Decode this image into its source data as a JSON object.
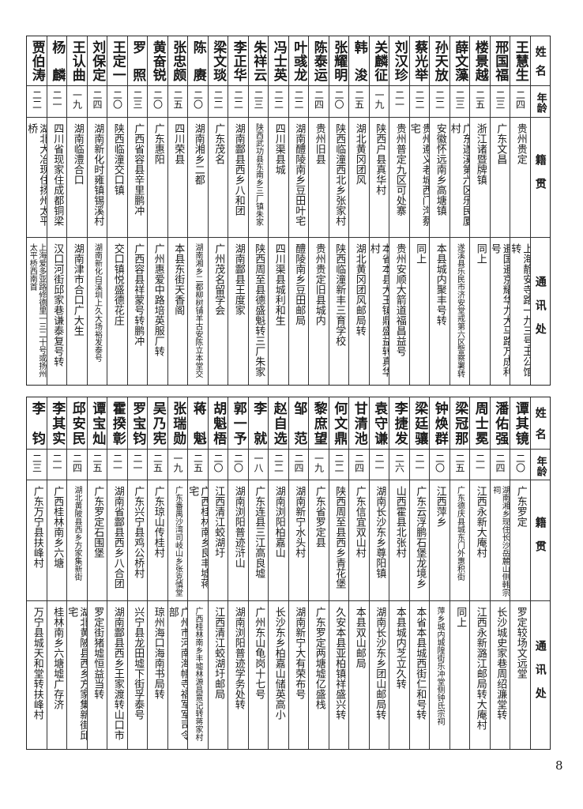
{
  "header": {
    "name": "姓名",
    "age": "年龄",
    "origin": "籍贯",
    "address": "通讯处"
  },
  "tables": [
    {
      "rows": [
        {
          "name": "王慧生",
          "age": "二四",
          "origin": "贵州贵定",
          "address": "上海静安寺路一九三号王公馆转"
        },
        {
          "name": "邢国福",
          "age": "二三",
          "origin": "广东文昌",
          "address": "暹国暹京耀华力大马路万成利号"
        },
        {
          "name": "楼景越",
          "age": "二五",
          "origin": "浙江诸暨牌镇",
          "address": "同上"
        },
        {
          "name": "薛文藻",
          "age": "二三",
          "origin": "广东遂溪第六区乐民厦村",
          "address": "遂溪县乐民市济安堂戒第六区警察署转"
        },
        {
          "name": "孙天放",
          "age": "二二",
          "origin": "安徽怀远南乡高塘镇",
          "address": "本县城内聚丰号转"
        },
        {
          "name": "蔡光举",
          "age": "二二",
          "origin": "贵州遵义老城西门沟蔡宅",
          "address": "同上"
        },
        {
          "name": "刘汉珍",
          "age": "二一",
          "origin": "贵州普定九区可处寨",
          "address": "贵州安顺大箭道福昌益号"
        },
        {
          "name": "关麟征",
          "age": "一九",
          "origin": "陕西户县真华村",
          "address": "本省本县大王镇鼎盛益转真华村"
        },
        {
          "name": "韩浚",
          "age": "二五",
          "origin": "湖北黄冈团风",
          "address": "湖北黄冈团风邮局转"
        },
        {
          "name": "张耀明",
          "age": "二〇",
          "origin": "陕西临潼西北乡张家村",
          "address": "陕西临潼新丰三育学校"
        },
        {
          "name": "陈泰运",
          "age": "二四",
          "origin": "贵州旧县",
          "address": "贵州贵定旧县城内"
        },
        {
          "name": "叶彧龙",
          "age": "二二",
          "origin": "湖南醴陵南乡豆田叶宅",
          "address": "醴陵南乡豆田邮局"
        },
        {
          "name": "冯士英",
          "age": "二二",
          "origin": "四川渠县城",
          "address": "四川渠县城利和生"
        },
        {
          "name": "朱祥云",
          "age": "二三",
          "origin": "陕西武功县东南乡三厂镇朱家",
          "address": "陕西周至县德盛魁转三厂朱家"
        },
        {
          "name": "李正华",
          "age": "二二",
          "origin": "湖南酃县西乡八和团",
          "address": "湖南酃县王度家"
        },
        {
          "name": "梁文琰",
          "age": "二二",
          "origin": "广东茂名",
          "address": "广州茂名留学会"
        },
        {
          "name": "陈赓",
          "age": "二〇",
          "origin": "湖南湘乡二都",
          "address": "湖南湘乡二都柳树铺羊古安陈立本堂交"
        },
        {
          "name": "张忠颇",
          "age": "二五",
          "origin": "四川荣县",
          "address": "本县东街天香阁"
        },
        {
          "name": "黄奋锐",
          "age": "二〇",
          "origin": "广东惠阳",
          "address": "广州惠爱中路培英服厂转"
        },
        {
          "name": "罗照",
          "age": "二三",
          "origin": "广西省容县辛里鹏冲",
          "address": "广西容县祥蒙号转鹏冲"
        },
        {
          "name": "王定一",
          "age": "二〇",
          "origin": "陕西临潼交口镇",
          "address": "交口镇悦盛德花庄"
        },
        {
          "name": "刘保定",
          "age": "二四",
          "origin": "湖南新化时雍镇锡溪村",
          "address": "湖南新化白溪圳上久大场裕发泰号"
        },
        {
          "name": "王认曲",
          "age": "一九",
          "origin": "湖南临澧合口",
          "address": "湖南津市合口广大生"
        },
        {
          "name": "杨麟",
          "age": "二一",
          "origin": "四川省现家住成都铜梁",
          "address": "汉口河街邱家巷谦泰复号转"
        },
        {
          "name": "贾伯涛",
          "age": "二二",
          "origin": "湖北大冶现住扬州太平桥",
          "address": "上海爱多亚路修德里一三二十号或扬州太平桥西南首"
        }
      ]
    },
    {
      "rows": [
        {
          "name": "谭其镜",
          "age": "二〇",
          "origin": "广东罗定",
          "address": "罗定较场文远堂"
        },
        {
          "name": "潘佑强",
          "age": "二四",
          "origin": "湖南湘乡现住长沙岳麓山侧韩宗祠",
          "address": "长沙城史家巷周绍濂堂转"
        },
        {
          "name": "周士冕",
          "age": "二一",
          "origin": "江西永新大庵村",
          "address": "江西永新潞江邮局转大庵村"
        },
        {
          "name": "梁冠那",
          "age": "二五",
          "origin": "广东德庆县城东门外惠积街",
          "address": "同上"
        },
        {
          "name": "钟焕群",
          "age": "二〇",
          "origin": "江西萍乡",
          "address": "萍乡城内城隍街乐冲堂侧钟氏宗祠"
        },
        {
          "name": "梁廷骧",
          "age": "二一",
          "origin": "广东云浮鹏石堡龙境乡",
          "address": "本省本县城西街仁和号转"
        },
        {
          "name": "李捷发",
          "age": "二六",
          "origin": "山西霍县北张村",
          "address": "本县城内芝立久转"
        },
        {
          "name": "袁守谦",
          "age": "二一",
          "origin": "湖南长沙东乡尊阳镇",
          "address": "湖南长沙东乡团山邮局转"
        },
        {
          "name": "甘清池",
          "age": "二四",
          "origin": "广东信宜双山村",
          "address": "本县双山邮局"
        },
        {
          "name": "何文鼎",
          "age": "二二",
          "origin": "陕西周至县西乡青花堡",
          "address": "久安本县亚柏镇祥盛兴转"
        },
        {
          "name": "黎庶望",
          "age": "一九",
          "origin": "广东省罗定县",
          "address": "广东罗定两塘墟亿盛栈"
        },
        {
          "name": "邹范",
          "age": "二四",
          "origin": "湖南新宁水头村",
          "address": "湖南新宁大有荣布号"
        },
        {
          "name": "赵自选",
          "age": "二二",
          "origin": "湖南浏阳柏嘉山",
          "address": "长沙东乡柏嘉山储英高小"
        },
        {
          "name": "李就",
          "age": "一八",
          "origin": "广东连县三江高良墟",
          "address": "广州东山龟岗十七号"
        },
        {
          "name": "郭一予",
          "age": "二〇",
          "origin": "湖南浏阳普迹浒山",
          "address": "湖南浏阳普迹学务处转"
        },
        {
          "name": "胡魁梧",
          "age": "二〇",
          "origin": "江西清江蛟湖圩",
          "address": "江西清江蛟湖圩邮局"
        },
        {
          "name": "蒋魁",
          "age": "二五",
          "origin": "广西桂林南乡良丰墟蒋宅",
          "address": "广西桂林南乡丰墟林源昌意记转蒋家村"
        },
        {
          "name": "张瑞勋",
          "age": "一九",
          "origin": "广东番禺沙湾司岐山乡张克慎堂",
          "address": "广州市河南海幢寺福军军司令部"
        },
        {
          "name": "吴乃宪",
          "age": "二五",
          "origin": "广东琼山传桂村",
          "address": "琼州海口海南书局转"
        },
        {
          "name": "罗宝钧",
          "age": "二一",
          "origin": "广东兴宁县鸡公桥村",
          "address": "兴宁县龙田墟下街孚泰号"
        },
        {
          "name": "霍揆彰",
          "age": "二一",
          "origin": "湖南省酃县西乡八合团",
          "address": "湖南酃县西乡王家渡转山口市"
        },
        {
          "name": "谭宝灿",
          "age": "二五",
          "origin": "广东罗定石围堡",
          "address": "罗定街猪墟恒益当转"
        },
        {
          "name": "邱安民",
          "age": "二四",
          "origin": "湖北黄陂县西乡方家集新街",
          "address": "湖北黄陂县西乡方家集新街邱宅"
        },
        {
          "name": "李其实",
          "age": "二一",
          "origin": "广西桂林南乡六塘",
          "address": "桂林南乡六塘墟广存济"
        },
        {
          "name": "李钧",
          "age": "二三",
          "origin": "广东万宁县扶峰村",
          "address": "万宁县城天和堂转扶峰村"
        }
      ]
    }
  ],
  "page_number": "8"
}
